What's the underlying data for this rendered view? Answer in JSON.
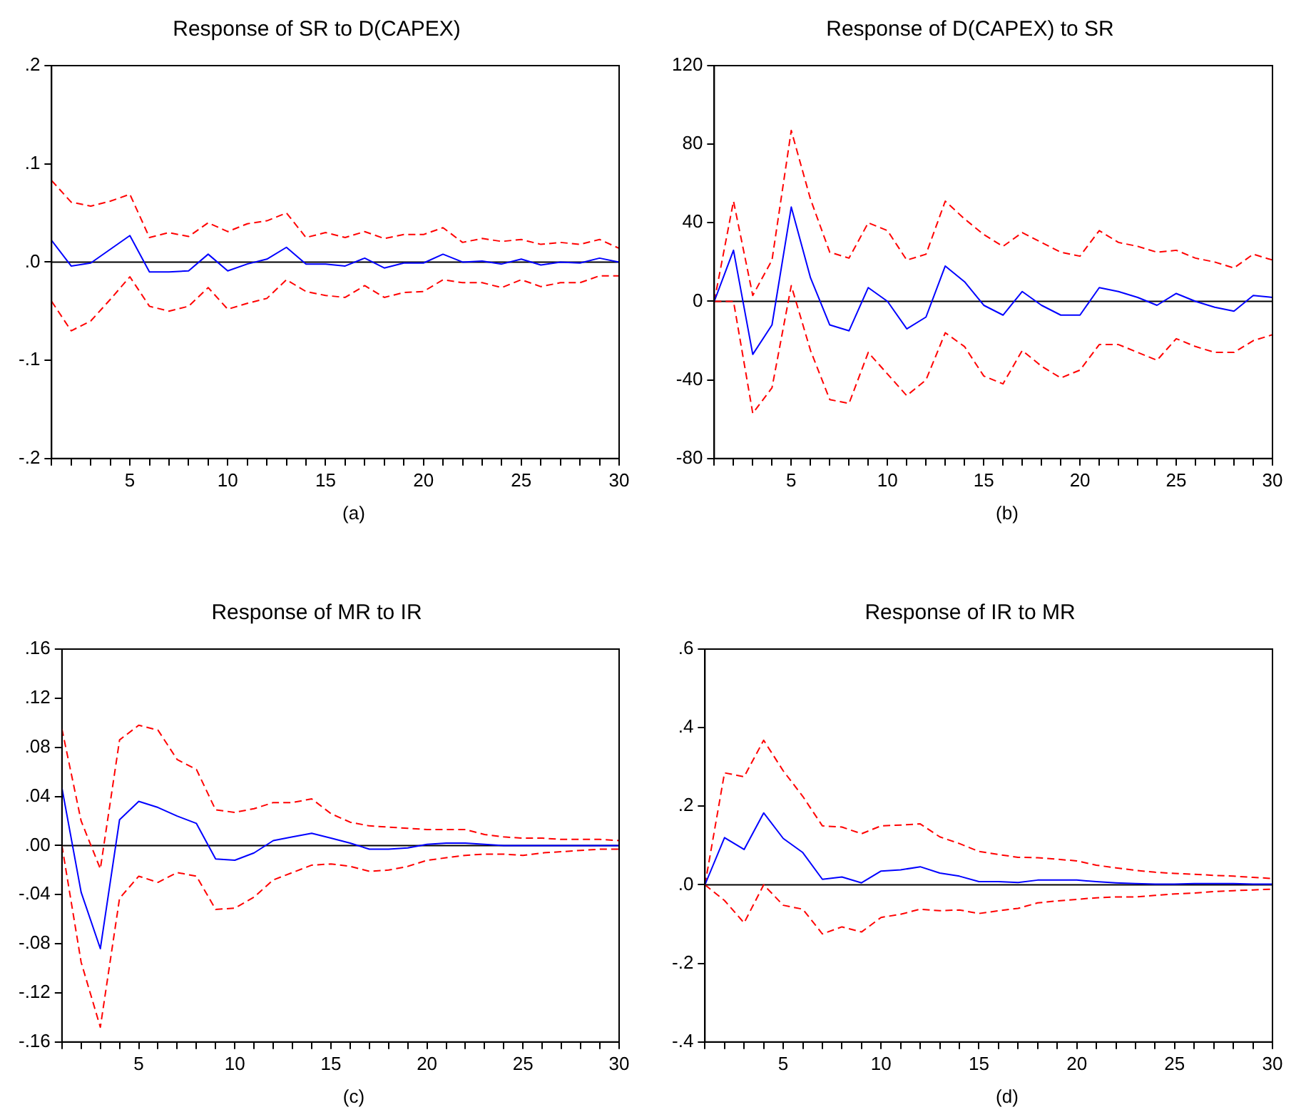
{
  "chart_data": [
    {
      "type": "line",
      "title": "Response of SR to D(CAPEX)",
      "annotations": [
        "(a)"
      ],
      "x": [
        1,
        2,
        3,
        4,
        5,
        6,
        7,
        8,
        9,
        10,
        11,
        12,
        13,
        14,
        15,
        16,
        17,
        18,
        19,
        20,
        21,
        22,
        23,
        24,
        25,
        26,
        27,
        28,
        29,
        30
      ],
      "xlim": [
        1,
        30
      ],
      "xticks": [
        {
          "value": 1,
          "label": null
        },
        {
          "value": 2,
          "label": null
        },
        {
          "value": 3,
          "label": null
        },
        {
          "value": 4,
          "label": null
        },
        5,
        {
          "value": 6,
          "label": null
        },
        {
          "value": 7,
          "label": null
        },
        {
          "value": 8,
          "label": null
        },
        {
          "value": 9,
          "label": null
        },
        10,
        {
          "value": 11,
          "label": null
        },
        {
          "value": 12,
          "label": null
        },
        {
          "value": 13,
          "label": null
        },
        {
          "value": 14,
          "label": null
        },
        15,
        {
          "value": 16,
          "label": null
        },
        {
          "value": 17,
          "label": null
        },
        {
          "value": 18,
          "label": null
        },
        {
          "value": 19,
          "label": null
        },
        20,
        {
          "value": 21,
          "label": null
        },
        {
          "value": 22,
          "label": null
        },
        {
          "value": 23,
          "label": null
        },
        {
          "value": 24,
          "label": null
        },
        25,
        {
          "value": 26,
          "label": null
        },
        {
          "value": 27,
          "label": null
        },
        {
          "value": 28,
          "label": null
        },
        {
          "value": 29,
          "label": null
        },
        30
      ],
      "ylim": [
        -0.2,
        0.2
      ],
      "yticks": [
        {
          "value": -0.2,
          "label": "-.2"
        },
        {
          "value": -0.1,
          "label": "-.1"
        },
        {
          "value": 0,
          "label": ".0"
        },
        {
          "value": 0.1,
          "label": ".1"
        },
        {
          "value": 0.2,
          "label": ".2"
        }
      ],
      "ref_lines": [
        {
          "axis": "y",
          "value": 0,
          "color": "#000000"
        }
      ],
      "series": [
        {
          "color": "#0000ff",
          "line_style": "solid",
          "values": [
            0.022,
            -0.004,
            -0.001,
            0.013,
            0.027,
            -0.01,
            -0.01,
            -0.009,
            0.008,
            -0.009,
            -0.002,
            0.003,
            0.015,
            -0.002,
            -0.002,
            -0.004,
            0.004,
            -0.006,
            -0.001,
            -0.001,
            0.008,
            0,
            0.001,
            -0.002,
            0.003,
            -0.003,
            0,
            -0.001,
            0.004,
            0
          ]
        },
        {
          "color": "#ff0000",
          "line_style": "dashed",
          "values": [
            0.083,
            0.061,
            0.057,
            0.062,
            0.069,
            0.025,
            0.03,
            0.026,
            0.04,
            0.031,
            0.039,
            0.042,
            0.05,
            0.025,
            0.03,
            0.025,
            0.031,
            0.024,
            0.028,
            0.028,
            0.035,
            0.02,
            0.024,
            0.021,
            0.023,
            0.018,
            0.02,
            0.018,
            0.023,
            0.014
          ]
        },
        {
          "color": "#ff0000",
          "line_style": "dashed",
          "values": [
            -0.04,
            -0.07,
            -0.06,
            -0.038,
            -0.015,
            -0.045,
            -0.05,
            -0.045,
            -0.026,
            -0.048,
            -0.042,
            -0.037,
            -0.018,
            -0.03,
            -0.034,
            -0.036,
            -0.024,
            -0.036,
            -0.031,
            -0.03,
            -0.018,
            -0.021,
            -0.021,
            -0.026,
            -0.018,
            -0.025,
            -0.021,
            -0.021,
            -0.014,
            -0.014
          ]
        }
      ]
    },
    {
      "type": "line",
      "title": "Response of D(CAPEX) to SR",
      "annotations": [
        "(b)"
      ],
      "x": [
        1,
        2,
        3,
        4,
        5,
        6,
        7,
        8,
        9,
        10,
        11,
        12,
        13,
        14,
        15,
        16,
        17,
        18,
        19,
        20,
        21,
        22,
        23,
        24,
        25,
        26,
        27,
        28,
        29,
        30
      ],
      "xlim": [
        1,
        30
      ],
      "xticks": [
        {
          "value": 1,
          "label": null
        },
        {
          "value": 2,
          "label": null
        },
        {
          "value": 3,
          "label": null
        },
        {
          "value": 4,
          "label": null
        },
        5,
        {
          "value": 6,
          "label": null
        },
        {
          "value": 7,
          "label": null
        },
        {
          "value": 8,
          "label": null
        },
        {
          "value": 9,
          "label": null
        },
        10,
        {
          "value": 11,
          "label": null
        },
        {
          "value": 12,
          "label": null
        },
        {
          "value": 13,
          "label": null
        },
        {
          "value": 14,
          "label": null
        },
        15,
        {
          "value": 16,
          "label": null
        },
        {
          "value": 17,
          "label": null
        },
        {
          "value": 18,
          "label": null
        },
        {
          "value": 19,
          "label": null
        },
        20,
        {
          "value": 21,
          "label": null
        },
        {
          "value": 22,
          "label": null
        },
        {
          "value": 23,
          "label": null
        },
        {
          "value": 24,
          "label": null
        },
        25,
        {
          "value": 26,
          "label": null
        },
        {
          "value": 27,
          "label": null
        },
        {
          "value": 28,
          "label": null
        },
        {
          "value": 29,
          "label": null
        },
        30
      ],
      "ylim": [
        -80,
        120
      ],
      "yticks": [
        -80,
        -40,
        0,
        40,
        80,
        120
      ],
      "ref_lines": [
        {
          "axis": "y",
          "value": 0,
          "color": "#000000"
        }
      ],
      "series": [
        {
          "color": "#0000ff",
          "line_style": "solid",
          "values": [
            0,
            26,
            -27,
            -12,
            48,
            12,
            -12,
            -15,
            7,
            0,
            -14,
            -8,
            18,
            10,
            -2,
            -7,
            5,
            -2,
            -7,
            -7,
            7,
            5,
            2,
            -2,
            4,
            0,
            -3,
            -5,
            3,
            2
          ]
        },
        {
          "color": "#ff0000",
          "line_style": "dashed",
          "values": [
            0,
            51,
            3,
            21,
            87,
            52,
            25,
            22,
            40,
            36,
            21,
            24,
            51,
            42,
            34,
            28,
            35,
            30,
            25,
            23,
            36,
            30,
            28,
            25,
            26,
            22,
            20,
            17,
            24,
            21
          ]
        },
        {
          "color": "#ff0000",
          "line_style": "dashed",
          "values": [
            0,
            0,
            -57,
            -44,
            8,
            -25,
            -50,
            -52,
            -26,
            -37,
            -48,
            -40,
            -16,
            -23,
            -38,
            -42,
            -25,
            -33,
            -39,
            -35,
            -22,
            -22,
            -26,
            -30,
            -19,
            -23,
            -26,
            -26,
            -20,
            -17
          ]
        }
      ]
    },
    {
      "type": "line",
      "title": "Response of MR to IR",
      "annotations": [
        "(c)"
      ],
      "x": [
        1,
        2,
        3,
        4,
        5,
        6,
        7,
        8,
        9,
        10,
        11,
        12,
        13,
        14,
        15,
        16,
        17,
        18,
        19,
        20,
        21,
        22,
        23,
        24,
        25,
        26,
        27,
        28,
        29,
        30
      ],
      "xlim": [
        1,
        30
      ],
      "xticks": [
        {
          "value": 1,
          "label": null
        },
        {
          "value": 2,
          "label": null
        },
        {
          "value": 3,
          "label": null
        },
        {
          "value": 4,
          "label": null
        },
        5,
        {
          "value": 6,
          "label": null
        },
        {
          "value": 7,
          "label": null
        },
        {
          "value": 8,
          "label": null
        },
        {
          "value": 9,
          "label": null
        },
        10,
        {
          "value": 11,
          "label": null
        },
        {
          "value": 12,
          "label": null
        },
        {
          "value": 13,
          "label": null
        },
        {
          "value": 14,
          "label": null
        },
        15,
        {
          "value": 16,
          "label": null
        },
        {
          "value": 17,
          "label": null
        },
        {
          "value": 18,
          "label": null
        },
        {
          "value": 19,
          "label": null
        },
        20,
        {
          "value": 21,
          "label": null
        },
        {
          "value": 22,
          "label": null
        },
        {
          "value": 23,
          "label": null
        },
        {
          "value": 24,
          "label": null
        },
        25,
        {
          "value": 26,
          "label": null
        },
        {
          "value": 27,
          "label": null
        },
        {
          "value": 28,
          "label": null
        },
        {
          "value": 29,
          "label": null
        },
        30
      ],
      "ylim": [
        -0.16,
        0.16
      ],
      "yticks": [
        {
          "value": -0.16,
          "label": "-.16"
        },
        {
          "value": -0.12,
          "label": "-.12"
        },
        {
          "value": -0.08,
          "label": "-.08"
        },
        {
          "value": -0.04,
          "label": "-.04"
        },
        {
          "value": 0,
          "label": ".00"
        },
        {
          "value": 0.04,
          "label": ".04"
        },
        {
          "value": 0.08,
          "label": ".08"
        },
        {
          "value": 0.12,
          "label": ".12"
        },
        {
          "value": 0.16,
          "label": ".16"
        }
      ],
      "ref_lines": [
        {
          "axis": "y",
          "value": 0,
          "color": "#000000"
        }
      ],
      "series": [
        {
          "color": "#0000ff",
          "line_style": "solid",
          "values": [
            0.047,
            -0.038,
            -0.084,
            0.021,
            0.036,
            0.031,
            0.024,
            0.018,
            -0.011,
            -0.012,
            -0.006,
            0.004,
            0.007,
            0.01,
            0.006,
            0.002,
            -0.003,
            -0.003,
            -0.002,
            0.001,
            0.002,
            0.002,
            0.001,
            0,
            0,
            0,
            0,
            0,
            0,
            0
          ]
        },
        {
          "color": "#ff0000",
          "line_style": "dashed",
          "values": [
            0.095,
            0.02,
            -0.019,
            0.086,
            0.098,
            0.094,
            0.07,
            0.062,
            0.029,
            0.027,
            0.03,
            0.035,
            0.035,
            0.038,
            0.026,
            0.019,
            0.016,
            0.015,
            0.014,
            0.013,
            0.013,
            0.013,
            0.009,
            0.007,
            0.006,
            0.006,
            0.005,
            0.005,
            0.005,
            0.004
          ]
        },
        {
          "color": "#ff0000",
          "line_style": "dashed",
          "values": [
            0,
            -0.095,
            -0.148,
            -0.043,
            -0.025,
            -0.03,
            -0.022,
            -0.025,
            -0.052,
            -0.051,
            -0.042,
            -0.028,
            -0.022,
            -0.016,
            -0.015,
            -0.017,
            -0.021,
            -0.02,
            -0.017,
            -0.012,
            -0.01,
            -0.008,
            -0.007,
            -0.007,
            -0.008,
            -0.006,
            -0.005,
            -0.004,
            -0.003,
            -0.003
          ]
        }
      ]
    },
    {
      "type": "line",
      "title": "Response of IR to MR",
      "annotations": [
        "(d)"
      ],
      "x": [
        1,
        2,
        3,
        4,
        5,
        6,
        7,
        8,
        9,
        10,
        11,
        12,
        13,
        14,
        15,
        16,
        17,
        18,
        19,
        20,
        21,
        22,
        23,
        24,
        25,
        26,
        27,
        28,
        29,
        30
      ],
      "xlim": [
        1,
        30
      ],
      "xticks": [
        {
          "value": 1,
          "label": null
        },
        {
          "value": 2,
          "label": null
        },
        {
          "value": 3,
          "label": null
        },
        {
          "value": 4,
          "label": null
        },
        5,
        {
          "value": 6,
          "label": null
        },
        {
          "value": 7,
          "label": null
        },
        {
          "value": 8,
          "label": null
        },
        {
          "value": 9,
          "label": null
        },
        10,
        {
          "value": 11,
          "label": null
        },
        {
          "value": 12,
          "label": null
        },
        {
          "value": 13,
          "label": null
        },
        {
          "value": 14,
          "label": null
        },
        15,
        {
          "value": 16,
          "label": null
        },
        {
          "value": 17,
          "label": null
        },
        {
          "value": 18,
          "label": null
        },
        {
          "value": 19,
          "label": null
        },
        20,
        {
          "value": 21,
          "label": null
        },
        {
          "value": 22,
          "label": null
        },
        {
          "value": 23,
          "label": null
        },
        {
          "value": 24,
          "label": null
        },
        25,
        {
          "value": 26,
          "label": null
        },
        {
          "value": 27,
          "label": null
        },
        {
          "value": 28,
          "label": null
        },
        {
          "value": 29,
          "label": null
        },
        30
      ],
      "ylim": [
        -0.4,
        0.6
      ],
      "yticks": [
        {
          "value": -0.4,
          "label": "-.4"
        },
        {
          "value": -0.2,
          "label": "-.2"
        },
        {
          "value": 0,
          "label": ".0"
        },
        {
          "value": 0.2,
          "label": ".2"
        },
        {
          "value": 0.4,
          "label": ".4"
        },
        {
          "value": 0.6,
          "label": ".6"
        }
      ],
      "ref_lines": [
        {
          "axis": "y",
          "value": 0,
          "color": "#000000"
        }
      ],
      "series": [
        {
          "color": "#0000ff",
          "line_style": "solid",
          "values": [
            0,
            0.12,
            0.09,
            0.183,
            0.118,
            0.082,
            0.014,
            0.02,
            0.005,
            0.035,
            0.038,
            0.046,
            0.03,
            0.022,
            0.008,
            0.008,
            0.006,
            0.012,
            0.012,
            0.012,
            0.008,
            0.005,
            0.003,
            0.002,
            0.002,
            0.003,
            0.003,
            0.003,
            0.002,
            0.002
          ]
        },
        {
          "color": "#ff0000",
          "line_style": "dashed",
          "values": [
            0,
            0.285,
            0.275,
            0.368,
            0.29,
            0.225,
            0.15,
            0.147,
            0.13,
            0.15,
            0.152,
            0.155,
            0.122,
            0.105,
            0.085,
            0.077,
            0.07,
            0.069,
            0.065,
            0.061,
            0.05,
            0.043,
            0.037,
            0.032,
            0.029,
            0.027,
            0.024,
            0.022,
            0.019,
            0.016
          ]
        },
        {
          "color": "#ff0000",
          "line_style": "dashed",
          "values": [
            0,
            -0.04,
            -0.097,
            0,
            -0.052,
            -0.062,
            -0.125,
            -0.107,
            -0.12,
            -0.083,
            -0.075,
            -0.062,
            -0.066,
            -0.064,
            -0.073,
            -0.066,
            -0.06,
            -0.046,
            -0.041,
            -0.037,
            -0.033,
            -0.031,
            -0.031,
            -0.027,
            -0.023,
            -0.021,
            -0.017,
            -0.015,
            -0.013,
            -0.011
          ]
        }
      ]
    }
  ]
}
